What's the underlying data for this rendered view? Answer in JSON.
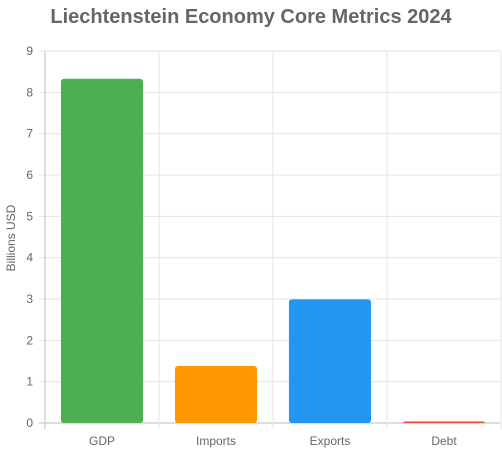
{
  "chart_data": {
    "type": "bar",
    "title": "Liechtenstein Economy Core Metrics 2024",
    "xlabel": "",
    "ylabel": "Billions USD",
    "categories": [
      "GDP",
      "Imports",
      "Exports",
      "Debt"
    ],
    "values": [
      8.33,
      1.38,
      2.99,
      0.03
    ],
    "colors": [
      "#4caf50",
      "#ff9800",
      "#2196f3",
      "#f44336"
    ],
    "ylim": [
      0,
      9
    ],
    "yticks": [
      0,
      1,
      2,
      3,
      4,
      5,
      6,
      7,
      8,
      9
    ],
    "grid": true,
    "legend": "none"
  }
}
